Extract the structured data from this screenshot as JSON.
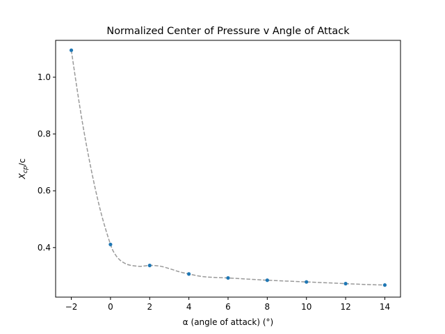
{
  "chart_data": {
    "type": "line",
    "title": "Normalized Center of Pressure v Angle of Attack",
    "xlabel": "α (angle of attack) (°)",
    "ylabel": {
      "main": "X",
      "sub": "cp",
      "suffix": "/c"
    },
    "xlim": [
      -2.8,
      14.8
    ],
    "ylim": [
      0.2255,
      1.1298
    ],
    "xticks": [
      -2,
      0,
      2,
      4,
      6,
      8,
      10,
      12,
      14
    ],
    "xtick_labels": [
      "−2",
      "0",
      "2",
      "4",
      "6",
      "8",
      "10",
      "12",
      "14"
    ],
    "yticks": [
      0.4,
      0.6,
      0.8,
      1.0
    ],
    "ytick_labels": [
      "0.4",
      "0.6",
      "0.8",
      "1.0"
    ],
    "grid": false,
    "legend": "none",
    "series": [
      {
        "style": "markers",
        "color": "#1f77b4",
        "x": [
          -2,
          0,
          2,
          4,
          6,
          8,
          10,
          12,
          14
        ],
        "y": [
          1.095,
          0.411,
          0.337,
          0.307,
          0.293,
          0.285,
          0.279,
          0.273,
          0.268
        ]
      },
      {
        "style": "dashed-curve",
        "color": "#999999",
        "x": [
          -2,
          -1.5,
          -1,
          -0.5,
          0,
          0.25,
          0.5,
          0.75,
          1,
          1.5,
          2,
          2.5,
          3,
          3.5,
          4,
          4.5,
          5,
          6,
          7,
          8,
          9,
          10,
          11,
          12,
          13,
          14
        ],
        "y": [
          1.095,
          0.868,
          0.68,
          0.527,
          0.411,
          0.375,
          0.355,
          0.344,
          0.338,
          0.334,
          0.337,
          0.335,
          0.326,
          0.315,
          0.307,
          0.3,
          0.296,
          0.293,
          0.289,
          0.285,
          0.282,
          0.279,
          0.276,
          0.273,
          0.27,
          0.268
        ]
      }
    ]
  }
}
